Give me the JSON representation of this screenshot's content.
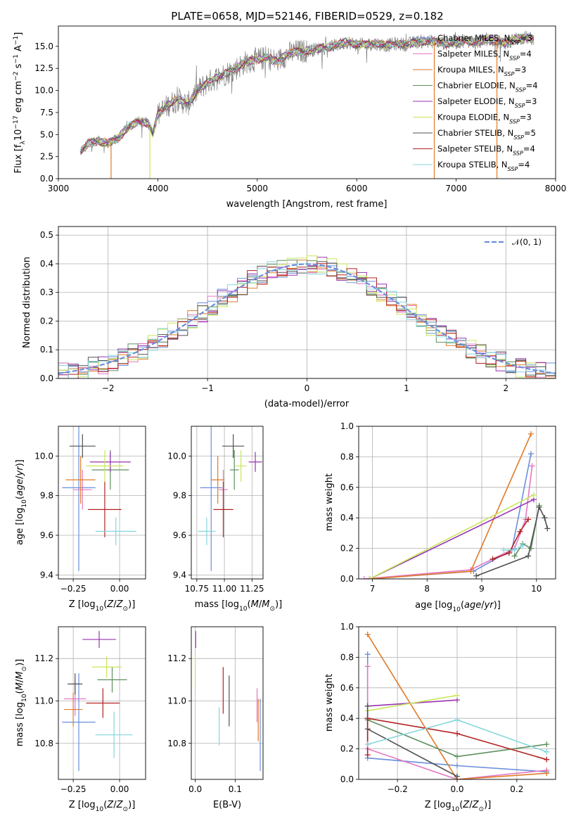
{
  "figure": {
    "title": "PLATE=0658, MJD=52146, FIBERID=0529, z=0.182"
  },
  "colors": {
    "chabrier_miles": "#6b8fdc",
    "salpeter_miles": "#e377c2",
    "kroupa_miles": "#e07b28",
    "chabrier_elodie": "#5e8f5e",
    "salpeter_elodie": "#9932b0",
    "kroupa_elodie": "#c8e65a",
    "chabrier_stelib": "#505050",
    "salpeter_stelib": "#b22222",
    "kroupa_stelib": "#85d6dc",
    "data_gray": "#7f7f7f"
  },
  "chart_data": [
    {
      "id": "spectrum",
      "type": "line",
      "title": "PLATE=0658, MJD=52146, FIBERID=0529, z=0.182",
      "xlabel": "wavelength [Angstrom, rest frame]",
      "ylabel": "Flux [f_λ 10^{-17} erg cm^{-2} s^{-1} A^{-1}]",
      "xlim": [
        3000,
        8000
      ],
      "ylim": [
        0,
        17.3
      ],
      "xticks": [
        3000,
        4000,
        5000,
        6000,
        7000,
        8000
      ],
      "yticks": [
        0.0,
        2.5,
        5.0,
        7.5,
        10.0,
        12.5,
        15.0
      ],
      "legend_position": "right",
      "legend": [
        {
          "label": "Chabrier MILES, N",
          "sub": "SSP",
          "suffix": "=3",
          "color_key": "chabrier_miles"
        },
        {
          "label": "Salpeter MILES, N",
          "sub": "SSP",
          "suffix": "=4",
          "color_key": "salpeter_miles"
        },
        {
          "label": "Kroupa MILES, N",
          "sub": "SSP",
          "suffix": "=3",
          "color_key": "kroupa_miles"
        },
        {
          "label": "Chabrier ELODIE, N",
          "sub": "SSP",
          "suffix": "=4",
          "color_key": "chabrier_elodie"
        },
        {
          "label": "Salpeter ELODIE, N",
          "sub": "SSP",
          "suffix": "=3",
          "color_key": "salpeter_elodie"
        },
        {
          "label": "Kroupa ELODIE, N",
          "sub": "SSP",
          "suffix": "=3",
          "color_key": "kroupa_elodie"
        },
        {
          "label": "Chabrier STELIB, N",
          "sub": "SSP",
          "suffix": "=5",
          "color_key": "chabrier_stelib"
        },
        {
          "label": "Salpeter STELIB, N",
          "sub": "SSP",
          "suffix": "=4",
          "color_key": "salpeter_stelib"
        },
        {
          "label": "Kroupa STELIB, N",
          "sub": "SSP",
          "suffix": "=4",
          "color_key": "kroupa_stelib"
        }
      ],
      "continuum": [
        [
          3220,
          3.0
        ],
        [
          3300,
          4.0
        ],
        [
          3400,
          4.3
        ],
        [
          3500,
          4.0
        ],
        [
          3600,
          4.6
        ],
        [
          3700,
          5.8
        ],
        [
          3800,
          6.5
        ],
        [
          3900,
          6.3
        ],
        [
          3950,
          5.2
        ],
        [
          4000,
          7.3
        ],
        [
          4100,
          8.3
        ],
        [
          4200,
          9.0
        ],
        [
          4300,
          8.4
        ],
        [
          4400,
          10.0
        ],
        [
          4500,
          10.9
        ],
        [
          4600,
          11.5
        ],
        [
          4700,
          12.0
        ],
        [
          4800,
          12.6
        ],
        [
          4900,
          13.3
        ],
        [
          5000,
          13.5
        ],
        [
          5100,
          13.7
        ],
        [
          5200,
          13.3
        ],
        [
          5300,
          14.1
        ],
        [
          5400,
          14.4
        ],
        [
          5500,
          14.5
        ],
        [
          5600,
          14.7
        ],
        [
          5700,
          14.9
        ],
        [
          5800,
          15.1
        ],
        [
          5900,
          15.5
        ],
        [
          6000,
          15.2
        ],
        [
          6100,
          15.2
        ],
        [
          6200,
          15.3
        ],
        [
          6300,
          15.1
        ],
        [
          6400,
          15.3
        ],
        [
          6500,
          15.2
        ],
        [
          6600,
          15.5
        ],
        [
          6700,
          15.6
        ],
        [
          6800,
          15.5
        ],
        [
          6900,
          15.3
        ],
        [
          7000,
          15.4
        ],
        [
          7100,
          15.7
        ],
        [
          7200,
          15.4
        ],
        [
          7300,
          15.8
        ],
        [
          7400,
          15.6
        ],
        [
          7500,
          15.3
        ],
        [
          7600,
          15.9
        ],
        [
          7700,
          16.0
        ],
        [
          7780,
          15.8
        ]
      ],
      "dips": [
        {
          "x": 3530,
          "color_key": "kroupa_miles"
        },
        {
          "x": 3920,
          "color_key": "kroupa_elodie"
        },
        {
          "x": 6780,
          "color_key": "kroupa_miles"
        },
        {
          "x": 7410,
          "color_key": "kroupa_miles"
        }
      ]
    },
    {
      "id": "residuals",
      "type": "line",
      "xlabel": "(data-model)/error",
      "ylabel": "Normed distribution",
      "xlim": [
        -2.5,
        2.5
      ],
      "ylim": [
        0,
        0.53
      ],
      "xticks": [
        -2,
        -1,
        0,
        1,
        2
      ],
      "yticks": [
        0.0,
        0.1,
        0.2,
        0.3,
        0.4,
        0.5
      ],
      "grid": true,
      "legend_position": "top-right",
      "series": [
        {
          "name": "N(0,1)",
          "legend_label": "𝒩(0, 1)",
          "color_key": "chabrier_miles",
          "style": "dashed",
          "mean": 0,
          "sigma": 1
        }
      ]
    },
    {
      "id": "age_vs_Z",
      "type": "scatter",
      "xlabel": "Z [log10(Z/Z⊙)]",
      "ylabel": "age  [log10(age/yr)]",
      "xlim": [
        -0.33,
        0.14
      ],
      "ylim": [
        9.38,
        10.15
      ],
      "xticks": [
        -0.25,
        0.0
      ],
      "yticks": [
        9.4,
        9.6,
        9.8,
        10.0
      ],
      "grid": true,
      "points": [
        {
          "x": -0.22,
          "y": 9.84,
          "xerr": 0.09,
          "yerr": 0.42,
          "color_key": "chabrier_miles"
        },
        {
          "x": -0.2,
          "y": 9.83,
          "xerr": 0.05,
          "yerr": 0.1,
          "color_key": "salpeter_miles"
        },
        {
          "x": -0.21,
          "y": 9.88,
          "xerr": 0.08,
          "yerr": 0.12,
          "color_key": "kroupa_miles"
        },
        {
          "x": -0.05,
          "y": 9.93,
          "xerr": 0.1,
          "yerr": 0.1,
          "color_key": "chabrier_elodie"
        },
        {
          "x": -0.05,
          "y": 9.97,
          "xerr": 0.11,
          "yerr": 0.05,
          "color_key": "salpeter_elodie"
        },
        {
          "x": -0.08,
          "y": 9.95,
          "xerr": 0.1,
          "yerr": 0.08,
          "color_key": "kroupa_elodie"
        },
        {
          "x": -0.2,
          "y": 10.05,
          "xerr": 0.07,
          "yerr": 0.06,
          "color_key": "chabrier_stelib"
        },
        {
          "x": -0.08,
          "y": 9.73,
          "xerr": 0.09,
          "yerr": 0.14,
          "color_key": "salpeter_stelib"
        },
        {
          "x": -0.02,
          "y": 9.62,
          "xerr": 0.11,
          "yerr": 0.07,
          "color_key": "kroupa_stelib"
        }
      ]
    },
    {
      "id": "age_vs_mass",
      "type": "scatter",
      "xlabel": "mass [log10(M/M⊙)]",
      "xlim": [
        10.7,
        11.35
      ],
      "ylim": [
        9.38,
        10.15
      ],
      "xticks": [
        10.75,
        11.0,
        11.25
      ],
      "yticks": [
        9.4,
        9.6,
        9.8,
        10.0
      ],
      "grid": true,
      "points": [
        {
          "x": 10.88,
          "y": 9.84,
          "xerr": 0.1,
          "yerr": 0.42,
          "color_key": "chabrier_miles"
        },
        {
          "x": 10.99,
          "y": 9.83,
          "xerr": 0.04,
          "yerr": 0.1,
          "color_key": "salpeter_miles"
        },
        {
          "x": 10.94,
          "y": 9.88,
          "xerr": 0.06,
          "yerr": 0.12,
          "color_key": "kroupa_miles"
        },
        {
          "x": 11.09,
          "y": 9.93,
          "xerr": 0.04,
          "yerr": 0.1,
          "color_key": "chabrier_elodie"
        },
        {
          "x": 11.28,
          "y": 9.97,
          "xerr": 0.06,
          "yerr": 0.05,
          "color_key": "salpeter_elodie"
        },
        {
          "x": 11.15,
          "y": 9.95,
          "xerr": 0.05,
          "yerr": 0.08,
          "color_key": "kroupa_elodie"
        },
        {
          "x": 11.08,
          "y": 10.05,
          "xerr": 0.1,
          "yerr": 0.06,
          "color_key": "chabrier_stelib"
        },
        {
          "x": 10.99,
          "y": 9.73,
          "xerr": 0.09,
          "yerr": 0.14,
          "color_key": "salpeter_stelib"
        },
        {
          "x": 10.84,
          "y": 9.62,
          "xerr": 0.08,
          "yerr": 0.07,
          "color_key": "kroupa_stelib"
        }
      ]
    },
    {
      "id": "weight_vs_age",
      "type": "line",
      "xlabel": "age  [log10(age/yr)]",
      "ylabel": "mass weight",
      "xlim": [
        6.75,
        10.35
      ],
      "ylim": [
        0,
        1.0
      ],
      "xticks": [
        7,
        8,
        9,
        10
      ],
      "yticks": [
        0.0,
        0.2,
        0.4,
        0.6,
        0.8,
        1.0
      ],
      "grid": true,
      "series": [
        {
          "color_key": "chabrier_miles",
          "x": [
            6.95,
            8.85,
            9.55,
            9.9
          ],
          "y": [
            0.0,
            0.05,
            0.19,
            0.82
          ]
        },
        {
          "color_key": "salpeter_miles",
          "x": [
            6.85,
            8.8,
            9.6,
            9.8,
            9.92
          ],
          "y": [
            0.0,
            0.06,
            0.2,
            0.39,
            0.74
          ]
        },
        {
          "color_key": "kroupa_miles",
          "x": [
            6.95,
            8.8,
            9.9
          ],
          "y": [
            0.0,
            0.05,
            0.95
          ]
        },
        {
          "color_key": "chabrier_elodie",
          "x": [
            9.6,
            9.75,
            9.9,
            10.05
          ],
          "y": [
            0.15,
            0.23,
            0.2,
            0.48
          ]
        },
        {
          "color_key": "salpeter_elodie",
          "x": [
            6.95,
            9.95
          ],
          "y": [
            0.0,
            0.52
          ]
        },
        {
          "color_key": "kroupa_elodie",
          "x": [
            6.95,
            9.95
          ],
          "y": [
            0.0,
            0.55
          ]
        },
        {
          "color_key": "chabrier_stelib",
          "x": [
            8.9,
            9.85,
            10.05,
            10.15,
            10.2
          ],
          "y": [
            0.02,
            0.15,
            0.47,
            0.4,
            0.33
          ]
        },
        {
          "color_key": "salpeter_stelib",
          "x": [
            9.2,
            9.5,
            9.7,
            9.85
          ],
          "y": [
            0.13,
            0.17,
            0.31,
            0.39
          ]
        },
        {
          "color_key": "kroupa_stelib",
          "x": [
            9.4,
            9.6,
            9.75
          ],
          "y": [
            0.19,
            0.19,
            0.22
          ]
        }
      ]
    },
    {
      "id": "mass_vs_Z",
      "type": "scatter",
      "xlabel": "Z [log10(Z/Z⊙)]",
      "ylabel": "mass [log10(M/M⊙)]",
      "xlim": [
        -0.33,
        0.14
      ],
      "ylim": [
        10.63,
        11.35
      ],
      "xticks": [
        -0.25,
        0.0
      ],
      "yticks": [
        10.8,
        11.0,
        11.2
      ],
      "grid": true,
      "points": [
        {
          "x": -0.22,
          "y": 10.9,
          "xerr": 0.09,
          "yerr": 0.23,
          "color_key": "chabrier_miles"
        },
        {
          "x": -0.24,
          "y": 11.01,
          "xerr": 0.06,
          "yerr": 0.08,
          "color_key": "salpeter_miles"
        },
        {
          "x": -0.25,
          "y": 10.96,
          "xerr": 0.05,
          "yerr": 0.08,
          "color_key": "kroupa_miles"
        },
        {
          "x": -0.04,
          "y": 11.1,
          "xerr": 0.08,
          "yerr": 0.06,
          "color_key": "chabrier_elodie"
        },
        {
          "x": -0.11,
          "y": 11.29,
          "xerr": 0.09,
          "yerr": 0.04,
          "color_key": "salpeter_elodie"
        },
        {
          "x": -0.07,
          "y": 11.16,
          "xerr": 0.08,
          "yerr": 0.05,
          "color_key": "kroupa_elodie"
        },
        {
          "x": -0.24,
          "y": 11.08,
          "xerr": 0.04,
          "yerr": 0.05,
          "color_key": "chabrier_stelib"
        },
        {
          "x": -0.09,
          "y": 10.99,
          "xerr": 0.09,
          "yerr": 0.07,
          "color_key": "salpeter_stelib"
        },
        {
          "x": -0.03,
          "y": 10.84,
          "xerr": 0.1,
          "yerr": 0.11,
          "color_key": "kroupa_stelib"
        }
      ]
    },
    {
      "id": "mass_vs_ebv",
      "type": "scatter",
      "xlabel": "E(B-V)",
      "xlim": [
        -0.01,
        0.17
      ],
      "ylim": [
        10.63,
        11.35
      ],
      "xticks": [
        0.0,
        0.1
      ],
      "yticks": [
        10.8,
        11.0,
        11.2
      ],
      "grid": true,
      "points": [
        {
          "x": 0.163,
          "y": 10.84,
          "xerr": 0,
          "yerr": 0.17,
          "color_key": "chabrier_miles"
        },
        {
          "x": 0.155,
          "y": 10.98,
          "xerr": 0,
          "yerr": 0.08,
          "color_key": "salpeter_miles"
        },
        {
          "x": 0.158,
          "y": 10.91,
          "xerr": 0,
          "yerr": 0.1,
          "color_key": "kroupa_miles"
        },
        {
          "x": 0.001,
          "y": 11.29,
          "xerr": 0,
          "yerr": 0.04,
          "color_key": "salpeter_elodie"
        },
        {
          "x": 0.0,
          "y": 11.14,
          "xerr": 0,
          "yerr": 0.08,
          "color_key": "kroupa_elodie"
        },
        {
          "x": 0.085,
          "y": 11.0,
          "xerr": 0,
          "yerr": 0.12,
          "color_key": "chabrier_stelib"
        },
        {
          "x": 0.07,
          "y": 11.05,
          "xerr": 0,
          "yerr": 0.11,
          "color_key": "salpeter_stelib"
        },
        {
          "x": 0.06,
          "y": 10.88,
          "xerr": 0,
          "yerr": 0.09,
          "color_key": "kroupa_stelib"
        }
      ]
    },
    {
      "id": "weight_vs_Z",
      "type": "line",
      "xlabel": "Z [log10(Z/Z⊙)]",
      "ylabel": "mass weight",
      "xlim": [
        -0.33,
        0.33
      ],
      "ylim": [
        0,
        1.0
      ],
      "xticks": [
        -0.2,
        0.0,
        0.2
      ],
      "yticks": [
        0.0,
        0.2,
        0.4,
        0.6,
        0.8,
        1.0
      ],
      "grid": true,
      "series": [
        {
          "color_key": "chabrier_miles",
          "x": [
            -0.3,
            -0.3,
            0.0,
            0.3
          ],
          "y": [
            0.82,
            0.14,
            0.09,
            0.05
          ]
        },
        {
          "color_key": "salpeter_miles",
          "x": [
            -0.3,
            -0.3,
            0.0,
            0.3
          ],
          "y": [
            0.74,
            0.2,
            0.0,
            0.06
          ]
        },
        {
          "color_key": "kroupa_miles",
          "x": [
            -0.3,
            0.0,
            0.3
          ],
          "y": [
            0.95,
            0.0,
            0.04
          ]
        },
        {
          "color_key": "chabrier_elodie",
          "x": [
            -0.3,
            0.0,
            0.3
          ],
          "y": [
            0.39,
            0.15,
            0.23
          ]
        },
        {
          "color_key": "salpeter_elodie",
          "x": [
            -0.3,
            0.0
          ],
          "y": [
            0.48,
            0.52
          ]
        },
        {
          "color_key": "kroupa_elodie",
          "x": [
            -0.3,
            0.0
          ],
          "y": [
            0.45,
            0.55
          ]
        },
        {
          "color_key": "chabrier_stelib",
          "x": [
            -0.3,
            -0.3,
            0.0
          ],
          "y": [
            0.48,
            0.33,
            0.02
          ]
        },
        {
          "color_key": "salpeter_stelib",
          "x": [
            -0.3,
            -0.3,
            0.0,
            0.3
          ],
          "y": [
            0.16,
            0.4,
            0.3,
            0.13
          ]
        },
        {
          "color_key": "kroupa_stelib",
          "x": [
            -0.3,
            0.0,
            0.3
          ],
          "y": [
            0.23,
            0.39,
            0.18
          ]
        }
      ]
    }
  ]
}
